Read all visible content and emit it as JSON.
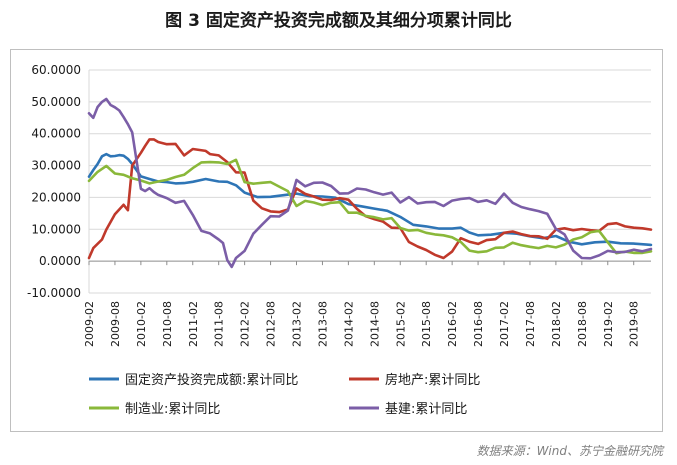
{
  "title": "图 3  固定资产投资完成额及其细分项累计同比",
  "source": "数据来源：Wind、苏宁金融研究院",
  "chart_data": {
    "type": "line",
    "ylim": [
      -10,
      60
    ],
    "yticks": [
      "60.0000",
      "50.0000",
      "40.0000",
      "30.0000",
      "20.0000",
      "10.0000",
      "0.0000",
      "-10.0000"
    ],
    "ytick_values": [
      60,
      50,
      40,
      30,
      20,
      10,
      0,
      -10
    ],
    "x_tick_labels": [
      "2009-02",
      "2009-08",
      "2010-02",
      "2010-08",
      "2011-02",
      "2011-08",
      "2012-02",
      "2012-08",
      "2013-02",
      "2013-08",
      "2014-02",
      "2014-08",
      "2015-02",
      "2015-08",
      "2016-02",
      "2016-08",
      "2017-02",
      "2017-08",
      "2018-02",
      "2018-08",
      "2019-02",
      "2019-08"
    ],
    "x_start": "2009-02",
    "x_end": "2019-12",
    "grid": true,
    "legend_position": "bottom",
    "series": [
      {
        "name": "固定资产投资完成额:累计同比",
        "color": "#2e75b6",
        "points": [
          [
            "2009-02",
            26.5
          ],
          [
            "2009-03",
            28.6
          ],
          [
            "2009-04",
            30.5
          ],
          [
            "2009-05",
            32.9
          ],
          [
            "2009-06",
            33.6
          ],
          [
            "2009-07",
            32.9
          ],
          [
            "2009-08",
            33.0
          ],
          [
            "2009-09",
            33.3
          ],
          [
            "2009-10",
            33.1
          ],
          [
            "2009-11",
            32.1
          ],
          [
            "2009-12",
            30.5
          ],
          [
            "2010-02",
            26.6
          ],
          [
            "2010-04",
            25.8
          ],
          [
            "2010-06",
            25.0
          ],
          [
            "2010-08",
            24.8
          ],
          [
            "2010-10",
            24.4
          ],
          [
            "2010-12",
            24.5
          ],
          [
            "2011-02",
            24.9
          ],
          [
            "2011-05",
            25.8
          ],
          [
            "2011-08",
            25.0
          ],
          [
            "2011-10",
            24.9
          ],
          [
            "2011-12",
            23.8
          ],
          [
            "2012-02",
            21.5
          ],
          [
            "2012-05",
            20.1
          ],
          [
            "2012-08",
            20.2
          ],
          [
            "2012-11",
            20.7
          ],
          [
            "2013-02",
            21.2
          ],
          [
            "2013-05",
            20.4
          ],
          [
            "2013-08",
            20.3
          ],
          [
            "2013-11",
            19.9
          ],
          [
            "2014-02",
            17.9
          ],
          [
            "2014-05",
            17.2
          ],
          [
            "2014-08",
            16.5
          ],
          [
            "2014-11",
            15.8
          ],
          [
            "2015-02",
            13.9
          ],
          [
            "2015-05",
            11.4
          ],
          [
            "2015-08",
            10.9
          ],
          [
            "2015-11",
            10.2
          ],
          [
            "2016-02",
            10.2
          ],
          [
            "2016-04",
            10.5
          ],
          [
            "2016-06",
            9.0
          ],
          [
            "2016-08",
            8.1
          ],
          [
            "2016-11",
            8.3
          ],
          [
            "2017-02",
            8.9
          ],
          [
            "2017-05",
            8.6
          ],
          [
            "2017-08",
            7.8
          ],
          [
            "2017-11",
            7.2
          ],
          [
            "2018-02",
            7.9
          ],
          [
            "2018-05",
            6.1
          ],
          [
            "2018-08",
            5.3
          ],
          [
            "2018-11",
            5.9
          ],
          [
            "2019-02",
            6.1
          ],
          [
            "2019-05",
            5.6
          ],
          [
            "2019-08",
            5.5
          ],
          [
            "2019-11",
            5.2
          ],
          [
            "2019-12",
            5.1
          ]
        ]
      },
      {
        "name": "房地产:累计同比",
        "color": "#c0392b",
        "points": [
          [
            "2009-02",
            1.0
          ],
          [
            "2009-03",
            4.1
          ],
          [
            "2009-05",
            6.8
          ],
          [
            "2009-06",
            9.9
          ],
          [
            "2009-08",
            14.7
          ],
          [
            "2009-10",
            17.7
          ],
          [
            "2009-11",
            16.0
          ],
          [
            "2009-12",
            30.0
          ],
          [
            "2010-02",
            34.0
          ],
          [
            "2010-03",
            36.2
          ],
          [
            "2010-04",
            38.2
          ],
          [
            "2010-05",
            38.2
          ],
          [
            "2010-06",
            37.4
          ],
          [
            "2010-08",
            36.7
          ],
          [
            "2010-10",
            36.8
          ],
          [
            "2010-12",
            33.2
          ],
          [
            "2011-02",
            35.2
          ],
          [
            "2011-05",
            34.6
          ],
          [
            "2011-06",
            33.6
          ],
          [
            "2011-08",
            33.2
          ],
          [
            "2011-10",
            31.1
          ],
          [
            "2011-12",
            27.9
          ],
          [
            "2012-02",
            27.8
          ],
          [
            "2012-04",
            19.0
          ],
          [
            "2012-06",
            16.6
          ],
          [
            "2012-08",
            15.6
          ],
          [
            "2012-10",
            15.4
          ],
          [
            "2012-12",
            16.2
          ],
          [
            "2013-02",
            22.8
          ],
          [
            "2013-04",
            21.1
          ],
          [
            "2013-06",
            20.3
          ],
          [
            "2013-08",
            19.3
          ],
          [
            "2013-10",
            19.2
          ],
          [
            "2013-12",
            19.8
          ],
          [
            "2014-02",
            19.3
          ],
          [
            "2014-04",
            16.4
          ],
          [
            "2014-06",
            14.1
          ],
          [
            "2014-08",
            13.2
          ],
          [
            "2014-10",
            12.4
          ],
          [
            "2014-12",
            10.5
          ],
          [
            "2015-02",
            10.4
          ],
          [
            "2015-04",
            6.0
          ],
          [
            "2015-06",
            4.6
          ],
          [
            "2015-08",
            3.5
          ],
          [
            "2015-10",
            2.0
          ],
          [
            "2015-12",
            1.0
          ],
          [
            "2016-02",
            3.0
          ],
          [
            "2016-04",
            7.2
          ],
          [
            "2016-06",
            6.1
          ],
          [
            "2016-08",
            5.4
          ],
          [
            "2016-10",
            6.6
          ],
          [
            "2016-12",
            6.9
          ],
          [
            "2017-02",
            8.9
          ],
          [
            "2017-04",
            9.3
          ],
          [
            "2017-06",
            8.5
          ],
          [
            "2017-08",
            7.9
          ],
          [
            "2017-10",
            7.8
          ],
          [
            "2017-12",
            7.0
          ],
          [
            "2018-02",
            9.9
          ],
          [
            "2018-04",
            10.3
          ],
          [
            "2018-06",
            9.7
          ],
          [
            "2018-08",
            10.1
          ],
          [
            "2018-10",
            9.7
          ],
          [
            "2018-12",
            9.5
          ],
          [
            "2019-02",
            11.6
          ],
          [
            "2019-04",
            11.9
          ],
          [
            "2019-06",
            10.9
          ],
          [
            "2019-08",
            10.5
          ],
          [
            "2019-10",
            10.3
          ],
          [
            "2019-12",
            9.9
          ]
        ]
      },
      {
        "name": "制造业:累计同比",
        "color": "#8ab83a",
        "points": [
          [
            "2009-02",
            25.2
          ],
          [
            "2009-04",
            28.0
          ],
          [
            "2009-06",
            29.9
          ],
          [
            "2009-08",
            27.5
          ],
          [
            "2009-10",
            27.1
          ],
          [
            "2009-12",
            26.0
          ],
          [
            "2010-02",
            25.3
          ],
          [
            "2010-04",
            24.4
          ],
          [
            "2010-06",
            25.0
          ],
          [
            "2010-08",
            25.5
          ],
          [
            "2010-10",
            26.4
          ],
          [
            "2010-12",
            27.1
          ],
          [
            "2011-02",
            29.2
          ],
          [
            "2011-04",
            31.0
          ],
          [
            "2011-06",
            31.1
          ],
          [
            "2011-08",
            31.0
          ],
          [
            "2011-10",
            30.5
          ],
          [
            "2011-12",
            31.8
          ],
          [
            "2012-02",
            24.8
          ],
          [
            "2012-04",
            24.3
          ],
          [
            "2012-06",
            24.6
          ],
          [
            "2012-08",
            24.8
          ],
          [
            "2012-10",
            23.4
          ],
          [
            "2012-12",
            22.0
          ],
          [
            "2013-02",
            17.3
          ],
          [
            "2013-04",
            18.9
          ],
          [
            "2013-06",
            18.4
          ],
          [
            "2013-08",
            17.6
          ],
          [
            "2013-10",
            18.3
          ],
          [
            "2013-12",
            18.5
          ],
          [
            "2014-02",
            15.2
          ],
          [
            "2014-04",
            15.2
          ],
          [
            "2014-06",
            14.2
          ],
          [
            "2014-08",
            13.8
          ],
          [
            "2014-10",
            13.1
          ],
          [
            "2014-12",
            13.5
          ],
          [
            "2015-02",
            10.4
          ],
          [
            "2015-04",
            9.6
          ],
          [
            "2015-06",
            9.8
          ],
          [
            "2015-08",
            8.9
          ],
          [
            "2015-10",
            8.4
          ],
          [
            "2015-12",
            8.1
          ],
          [
            "2016-02",
            7.5
          ],
          [
            "2016-04",
            6.0
          ],
          [
            "2016-06",
            3.3
          ],
          [
            "2016-08",
            2.8
          ],
          [
            "2016-10",
            3.1
          ],
          [
            "2016-12",
            4.2
          ],
          [
            "2017-02",
            4.3
          ],
          [
            "2017-04",
            5.8
          ],
          [
            "2017-06",
            5.0
          ],
          [
            "2017-08",
            4.5
          ],
          [
            "2017-10",
            4.1
          ],
          [
            "2017-12",
            4.8
          ],
          [
            "2018-02",
            4.3
          ],
          [
            "2018-04",
            5.2
          ],
          [
            "2018-06",
            6.8
          ],
          [
            "2018-08",
            7.5
          ],
          [
            "2018-10",
            9.1
          ],
          [
            "2018-12",
            9.5
          ],
          [
            "2019-02",
            5.9
          ],
          [
            "2019-04",
            2.5
          ],
          [
            "2019-06",
            3.0
          ],
          [
            "2019-08",
            2.6
          ],
          [
            "2019-10",
            2.6
          ],
          [
            "2019-12",
            3.1
          ]
        ]
      },
      {
        "name": "基建:累计同比",
        "color": "#7b5ea7",
        "points": [
          [
            "2009-02",
            46.4
          ],
          [
            "2009-03",
            45.0
          ],
          [
            "2009-04",
            48.4
          ],
          [
            "2009-05",
            50.0
          ],
          [
            "2009-06",
            50.9
          ],
          [
            "2009-07",
            49.0
          ],
          [
            "2009-08",
            48.3
          ],
          [
            "2009-09",
            47.3
          ],
          [
            "2009-10",
            45.2
          ],
          [
            "2009-11",
            43.0
          ],
          [
            "2009-12",
            40.4
          ],
          [
            "2010-02",
            22.7
          ],
          [
            "2010-03",
            22.0
          ],
          [
            "2010-04",
            22.9
          ],
          [
            "2010-05",
            21.7
          ],
          [
            "2010-06",
            20.8
          ],
          [
            "2010-08",
            19.8
          ],
          [
            "2010-10",
            18.3
          ],
          [
            "2010-12",
            18.9
          ],
          [
            "2011-02",
            14.5
          ],
          [
            "2011-04",
            9.5
          ],
          [
            "2011-06",
            8.7
          ],
          [
            "2011-08",
            6.8
          ],
          [
            "2011-09",
            5.7
          ],
          [
            "2011-10",
            0.3
          ],
          [
            "2011-11",
            -1.8
          ],
          [
            "2011-12",
            1.0
          ],
          [
            "2012-02",
            3.2
          ],
          [
            "2012-04",
            8.6
          ],
          [
            "2012-06",
            11.4
          ],
          [
            "2012-08",
            14.1
          ],
          [
            "2012-10",
            14.0
          ],
          [
            "2012-12",
            15.9
          ],
          [
            "2013-02",
            25.5
          ],
          [
            "2013-04",
            23.5
          ],
          [
            "2013-06",
            24.6
          ],
          [
            "2013-08",
            24.7
          ],
          [
            "2013-10",
            23.6
          ],
          [
            "2013-12",
            21.2
          ],
          [
            "2014-02",
            21.3
          ],
          [
            "2014-04",
            22.8
          ],
          [
            "2014-06",
            22.5
          ],
          [
            "2014-08",
            21.6
          ],
          [
            "2014-10",
            20.9
          ],
          [
            "2014-12",
            21.5
          ],
          [
            "2015-02",
            18.4
          ],
          [
            "2015-04",
            20.1
          ],
          [
            "2015-06",
            18.1
          ],
          [
            "2015-08",
            18.5
          ],
          [
            "2015-10",
            18.6
          ],
          [
            "2015-12",
            17.3
          ],
          [
            "2016-02",
            19.0
          ],
          [
            "2016-04",
            19.5
          ],
          [
            "2016-06",
            19.8
          ],
          [
            "2016-08",
            18.6
          ],
          [
            "2016-10",
            19.1
          ],
          [
            "2016-12",
            18.0
          ],
          [
            "2017-02",
            21.2
          ],
          [
            "2017-04",
            18.3
          ],
          [
            "2017-06",
            17.0
          ],
          [
            "2017-08",
            16.3
          ],
          [
            "2017-10",
            15.7
          ],
          [
            "2017-12",
            14.9
          ],
          [
            "2018-02",
            10.1
          ],
          [
            "2018-04",
            8.4
          ],
          [
            "2018-06",
            3.3
          ],
          [
            "2018-08",
            1.0
          ],
          [
            "2018-10",
            0.9
          ],
          [
            "2018-12",
            1.8
          ],
          [
            "2019-02",
            3.2
          ],
          [
            "2019-04",
            2.8
          ],
          [
            "2019-06",
            2.9
          ],
          [
            "2019-08",
            3.6
          ],
          [
            "2019-10",
            3.1
          ],
          [
            "2019-12",
            3.8
          ]
        ]
      }
    ]
  }
}
